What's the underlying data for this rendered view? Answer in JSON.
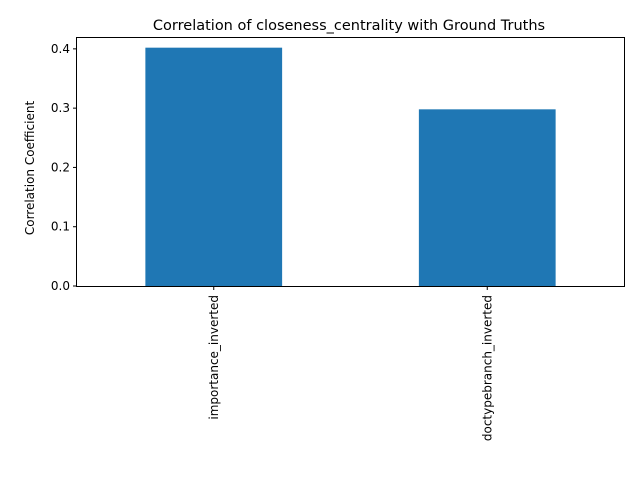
{
  "chart_data": {
    "type": "bar",
    "title": "Correlation of closeness_centrality with Ground Truths",
    "xlabel": "",
    "ylabel": "Correlation Coefficient",
    "categories": [
      "importance_inverted",
      "doctypebranch_inverted"
    ],
    "values": [
      0.402,
      0.298
    ],
    "ylim": [
      0,
      0.42
    ],
    "yticks": [
      0.0,
      0.1,
      0.2,
      0.3,
      0.4
    ],
    "ytick_labels": [
      "0.0",
      "0.1",
      "0.2",
      "0.3",
      "0.4"
    ],
    "grid": false,
    "legend": "none",
    "bar_color": "#1f77b4",
    "x_tick_label_rotation": "vertical"
  }
}
